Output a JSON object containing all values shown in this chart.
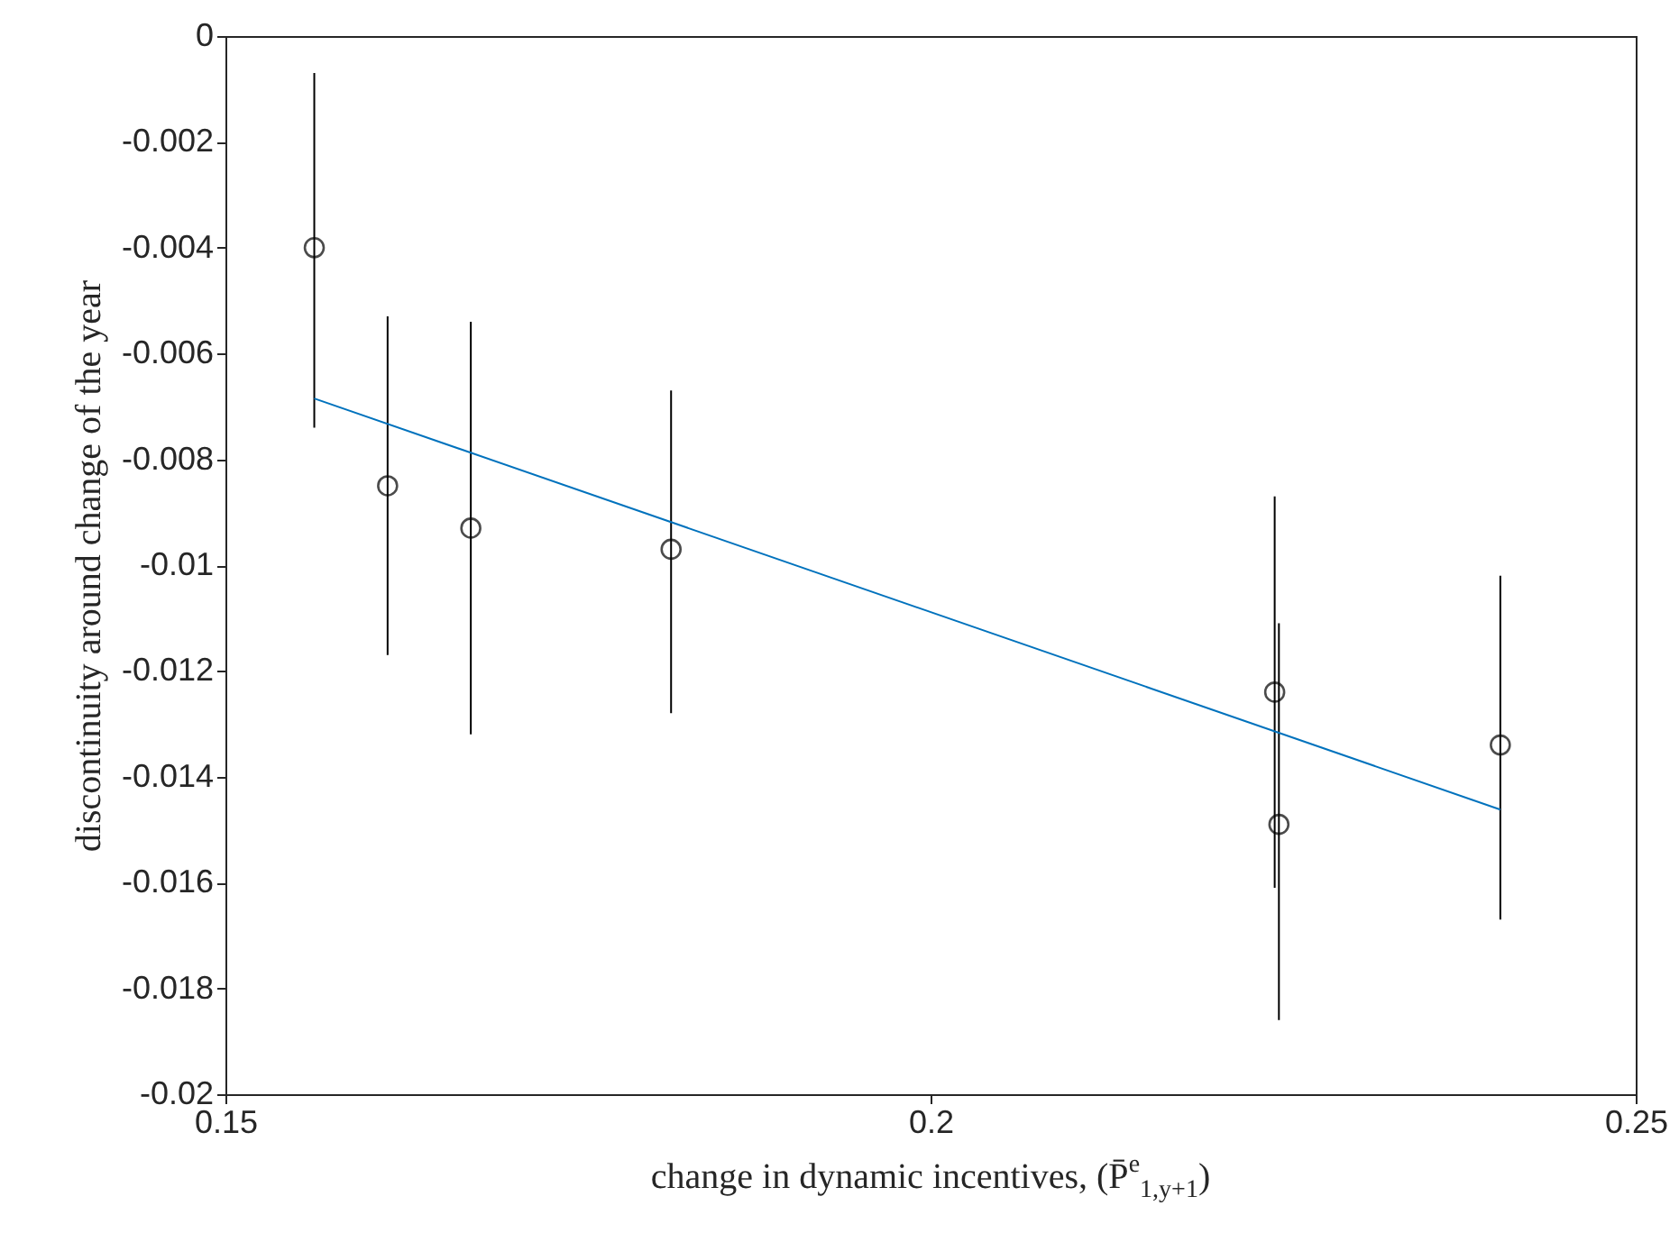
{
  "chart_data": {
    "type": "scatter",
    "xlabel": "change in dynamic incentives, (P̄$^{e}$$_{1,y+1}$)",
    "ylabel": "discontinuity around change of the year",
    "xlim": [
      0.15,
      0.25
    ],
    "xticks": [
      0.15,
      0.2,
      0.25
    ],
    "ylim": [
      -0.02,
      0
    ],
    "yticks": [
      -0.02,
      -0.018,
      -0.016,
      -0.014,
      -0.012,
      -0.01,
      -0.008,
      -0.006,
      -0.004,
      -0.002,
      0
    ],
    "grid": false,
    "marker": "circle",
    "series": [
      {
        "color": "#000000",
        "x": [
          0.1563,
          0.1615,
          0.1674,
          0.1816,
          0.2244,
          0.2247,
          0.2404
        ],
        "values": [
          -0.004,
          -0.0085,
          -0.0093,
          -0.0097,
          -0.0124,
          -0.0149,
          -0.0134
        ],
        "errors": [
          [
            -0.0074,
            -0.0007
          ],
          [
            -0.0117,
            -0.0053
          ],
          [
            -0.0132,
            -0.0054
          ],
          [
            -0.0128,
            -0.0067
          ],
          [
            -0.0161,
            -0.0087
          ],
          [
            -0.0186,
            -0.0111
          ],
          [
            -0.0167,
            -0.0102
          ]
        ]
      },
      {
        "type": "line",
        "marker": "none",
        "color": "#0072bd",
        "x": [
          0.1563,
          0.2404
        ],
        "values": [
          -0.00685,
          -0.01462
        ]
      }
    ]
  }
}
